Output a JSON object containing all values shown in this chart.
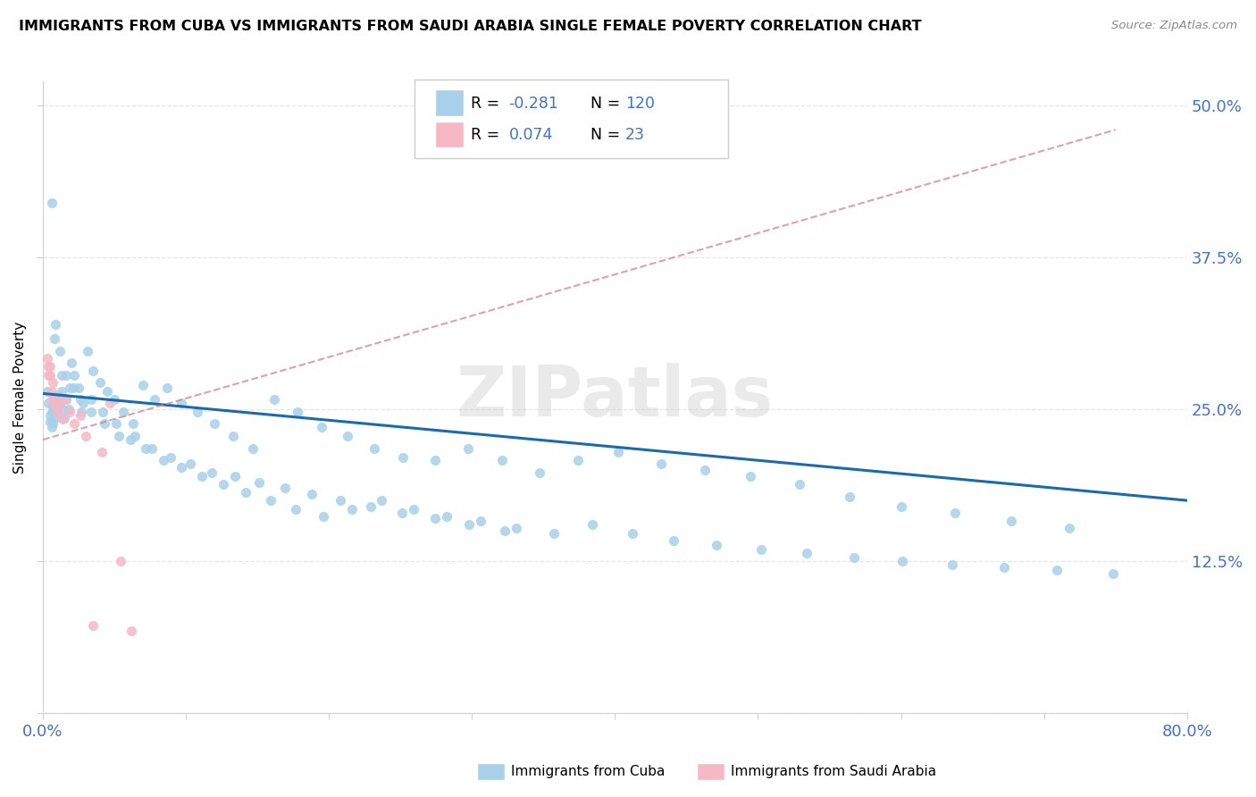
{
  "title": "IMMIGRANTS FROM CUBA VS IMMIGRANTS FROM SAUDI ARABIA SINGLE FEMALE POVERTY CORRELATION CHART",
  "source": "Source: ZipAtlas.com",
  "ylabel": "Single Female Poverty",
  "xlim": [
    0.0,
    0.8
  ],
  "ylim": [
    0.0,
    0.52
  ],
  "cuba_color": "#a8d0e8",
  "saudi_color": "#f5b8c4",
  "cuba_R": -0.281,
  "cuba_N": 120,
  "saudi_R": 0.074,
  "saudi_N": 23,
  "trend_cuba_color": "#1a6bad",
  "trend_saudi_color": "#d4808f",
  "watermark": "ZIPatlas",
  "value_color": "#4472c4",
  "cuba_x": [
    0.003,
    0.004,
    0.005,
    0.005,
    0.006,
    0.006,
    0.007,
    0.007,
    0.008,
    0.008,
    0.009,
    0.01,
    0.01,
    0.011,
    0.012,
    0.013,
    0.014,
    0.015,
    0.016,
    0.018,
    0.02,
    0.022,
    0.025,
    0.028,
    0.031,
    0.035,
    0.04,
    0.045,
    0.05,
    0.056,
    0.063,
    0.07,
    0.078,
    0.087,
    0.097,
    0.108,
    0.12,
    0.133,
    0.147,
    0.162,
    0.178,
    0.195,
    0.213,
    0.232,
    0.252,
    0.274,
    0.297,
    0.321,
    0.347,
    0.374,
    0.402,
    0.432,
    0.463,
    0.495,
    0.529,
    0.564,
    0.6,
    0.638,
    0.677,
    0.718,
    0.006,
    0.009,
    0.012,
    0.016,
    0.021,
    0.027,
    0.034,
    0.042,
    0.051,
    0.061,
    0.072,
    0.084,
    0.097,
    0.111,
    0.126,
    0.142,
    0.159,
    0.177,
    0.196,
    0.216,
    0.237,
    0.259,
    0.282,
    0.306,
    0.331,
    0.357,
    0.384,
    0.412,
    0.441,
    0.471,
    0.502,
    0.534,
    0.567,
    0.601,
    0.636,
    0.672,
    0.709,
    0.748,
    0.008,
    0.013,
    0.019,
    0.026,
    0.034,
    0.043,
    0.053,
    0.064,
    0.076,
    0.089,
    0.103,
    0.118,
    0.134,
    0.151,
    0.169,
    0.188,
    0.208,
    0.229,
    0.251,
    0.274,
    0.298,
    0.323
  ],
  "cuba_y": [
    0.265,
    0.255,
    0.245,
    0.24,
    0.235,
    0.248,
    0.252,
    0.238,
    0.258,
    0.243,
    0.26,
    0.248,
    0.253,
    0.26,
    0.255,
    0.265,
    0.25,
    0.243,
    0.258,
    0.25,
    0.288,
    0.278,
    0.268,
    0.255,
    0.298,
    0.282,
    0.272,
    0.265,
    0.258,
    0.248,
    0.238,
    0.27,
    0.258,
    0.268,
    0.255,
    0.248,
    0.238,
    0.228,
    0.218,
    0.258,
    0.248,
    0.235,
    0.228,
    0.218,
    0.21,
    0.208,
    0.218,
    0.208,
    0.198,
    0.208,
    0.215,
    0.205,
    0.2,
    0.195,
    0.188,
    0.178,
    0.17,
    0.165,
    0.158,
    0.152,
    0.42,
    0.32,
    0.298,
    0.278,
    0.268,
    0.248,
    0.258,
    0.248,
    0.238,
    0.225,
    0.218,
    0.208,
    0.202,
    0.195,
    0.188,
    0.182,
    0.175,
    0.168,
    0.162,
    0.168,
    0.175,
    0.168,
    0.162,
    0.158,
    0.152,
    0.148,
    0.155,
    0.148,
    0.142,
    0.138,
    0.135,
    0.132,
    0.128,
    0.125,
    0.122,
    0.12,
    0.118,
    0.115,
    0.308,
    0.278,
    0.268,
    0.258,
    0.248,
    0.238,
    0.228,
    0.228,
    0.218,
    0.21,
    0.205,
    0.198,
    0.195,
    0.19,
    0.185,
    0.18,
    0.175,
    0.17,
    0.165,
    0.16,
    0.155,
    0.15
  ],
  "saudi_x": [
    0.003,
    0.004,
    0.004,
    0.005,
    0.005,
    0.006,
    0.006,
    0.007,
    0.008,
    0.009,
    0.01,
    0.012,
    0.014,
    0.016,
    0.019,
    0.022,
    0.026,
    0.03,
    0.035,
    0.041,
    0.047,
    0.054,
    0.062
  ],
  "saudi_y": [
    0.292,
    0.285,
    0.278,
    0.285,
    0.278,
    0.258,
    0.265,
    0.272,
    0.26,
    0.252,
    0.248,
    0.255,
    0.242,
    0.258,
    0.248,
    0.238,
    0.245,
    0.228,
    0.072,
    0.215,
    0.255,
    0.125,
    0.068
  ],
  "cuba_trend_x0": 0.0,
  "cuba_trend_y0": 0.263,
  "cuba_trend_x1": 0.8,
  "cuba_trend_y1": 0.175,
  "saudi_trend_x0": 0.0,
  "saudi_trend_y0": 0.225,
  "saudi_trend_x1": 0.75,
  "saudi_trend_y1": 0.48
}
